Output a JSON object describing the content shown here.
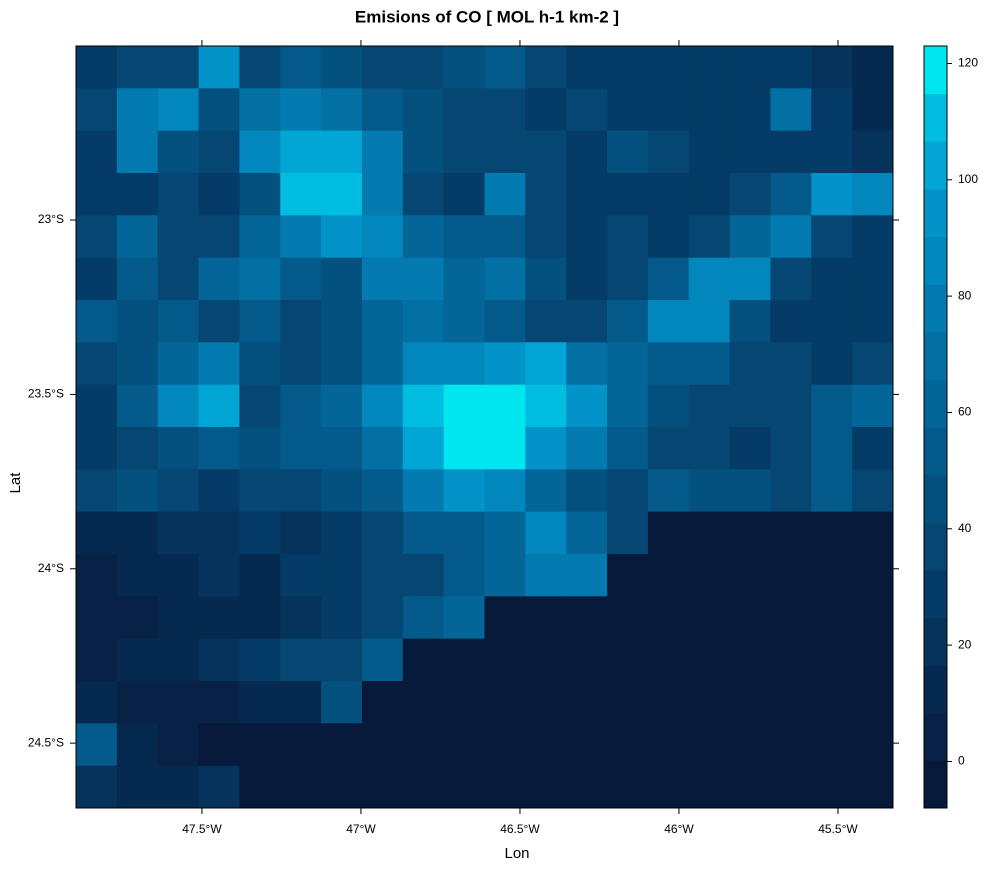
{
  "chart_data": {
    "type": "heatmap",
    "title": "Emisions of CO [ MOL h-1 km-2 ]",
    "x_label": "Lon",
    "y_label": "Lat",
    "xlim": [
      -47.896,
      -45.327
    ],
    "ylim": [
      -24.686,
      -22.501
    ],
    "xticks": [
      {
        "value": -47.5,
        "label": "47.5°W"
      },
      {
        "value": -47,
        "label": "47°W"
      },
      {
        "value": -46.5,
        "label": "46.5°W"
      },
      {
        "value": -46,
        "label": "46°W"
      },
      {
        "value": -45.5,
        "label": "45.5°W"
      }
    ],
    "yticks": [
      {
        "value": -23,
        "label": "23°S"
      },
      {
        "value": -23.5,
        "label": "23.5°S"
      },
      {
        "value": -24,
        "label": "24°S"
      },
      {
        "value": -24.5,
        "label": "24.5°S"
      }
    ],
    "zlim": [
      -8,
      123
    ],
    "zticks": [
      0,
      20,
      40,
      60,
      80,
      100,
      120
    ],
    "colors": [
      "#071a3b",
      "#072244",
      "#062a4f",
      "#06335b",
      "#053c67",
      "#054673",
      "#04507f",
      "#045a8b",
      "#036598",
      "#0370a4",
      "#037bb0",
      "#0287bc",
      "#0293c8",
      "#01a6d4",
      "#01bde0",
      "#00e5ef"
    ],
    "z": [
      [
        30,
        35,
        40,
        95,
        40,
        50,
        45,
        40,
        35,
        45,
        55,
        35,
        30,
        25,
        30,
        25,
        30,
        25,
        20,
        15
      ],
      [
        35,
        80,
        90,
        45,
        70,
        80,
        70,
        50,
        45,
        40,
        35,
        30,
        35,
        25,
        25,
        30,
        25,
        70,
        25,
        15
      ],
      [
        30,
        75,
        45,
        40,
        85,
        100,
        105,
        75,
        45,
        40,
        40,
        35,
        30,
        45,
        35,
        25,
        30,
        30,
        25,
        20
      ],
      [
        25,
        30,
        35,
        30,
        45,
        110,
        110,
        80,
        40,
        30,
        75,
        35,
        30,
        30,
        25,
        30,
        35,
        55,
        95,
        90
      ],
      [
        40,
        60,
        35,
        40,
        60,
        80,
        95,
        90,
        65,
        55,
        55,
        40,
        30,
        35,
        25,
        35,
        65,
        80,
        40,
        30
      ],
      [
        30,
        55,
        40,
        65,
        70,
        50,
        45,
        80,
        75,
        60,
        70,
        45,
        30,
        40,
        55,
        90,
        85,
        40,
        30,
        25
      ],
      [
        50,
        45,
        55,
        40,
        55,
        40,
        45,
        60,
        70,
        65,
        55,
        40,
        40,
        50,
        85,
        90,
        45,
        30,
        25,
        25
      ],
      [
        35,
        45,
        60,
        80,
        45,
        40,
        45,
        60,
        85,
        90,
        95,
        100,
        70,
        60,
        55,
        50,
        40,
        35,
        30,
        35
      ],
      [
        30,
        50,
        90,
        100,
        40,
        50,
        60,
        90,
        110,
        120,
        120,
        110,
        95,
        60,
        45,
        40,
        35,
        35,
        55,
        60
      ],
      [
        30,
        40,
        45,
        50,
        45,
        55,
        50,
        70,
        105,
        120,
        115,
        95,
        75,
        50,
        40,
        35,
        30,
        40,
        55,
        30
      ],
      [
        35,
        45,
        35,
        30,
        35,
        40,
        45,
        55,
        80,
        95,
        90,
        60,
        45,
        40,
        50,
        45,
        45,
        40,
        55,
        40
      ],
      [
        10,
        15,
        20,
        20,
        25,
        20,
        30,
        40,
        50,
        55,
        60,
        90,
        60,
        40,
        -5,
        -5,
        -5,
        -5,
        -5,
        -5
      ],
      [
        5,
        10,
        15,
        20,
        15,
        25,
        30,
        35,
        40,
        50,
        65,
        80,
        75,
        -5,
        -5,
        -5,
        -5,
        -5,
        -5,
        -5
      ],
      [
        5,
        5,
        10,
        10,
        15,
        20,
        25,
        35,
        55,
        60,
        -5,
        -5,
        -5,
        -5,
        -5,
        -5,
        -5,
        -5,
        -5,
        -5
      ],
      [
        5,
        10,
        15,
        20,
        25,
        35,
        40,
        55,
        -5,
        -5,
        -5,
        -5,
        -5,
        -5,
        -5,
        -5,
        -5,
        -5,
        -5,
        -5
      ],
      [
        10,
        5,
        5,
        5,
        10,
        10,
        45,
        -5,
        -5,
        -5,
        -5,
        -5,
        -5,
        -5,
        -5,
        -5,
        -5,
        -5,
        -5,
        -5
      ],
      [
        50,
        15,
        5,
        -5,
        -5,
        -5,
        -5,
        -5,
        -5,
        -5,
        -5,
        -5,
        -5,
        -5,
        -5,
        -5,
        -5,
        -5,
        -5,
        -5
      ],
      [
        20,
        15,
        10,
        20,
        -5,
        -5,
        -5,
        -5,
        -5,
        -5,
        -5,
        -5,
        -5,
        -5,
        -5,
        -5,
        -5,
        -5,
        -5,
        -5
      ]
    ]
  }
}
